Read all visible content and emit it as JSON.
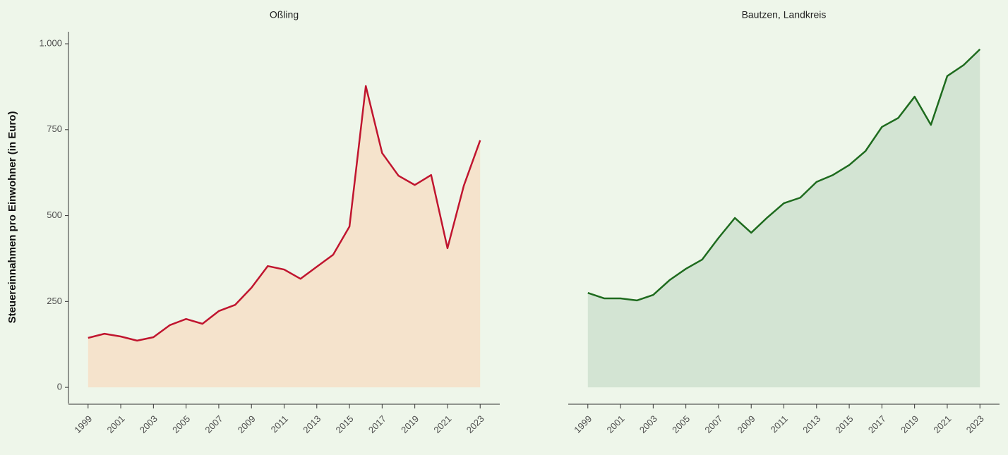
{
  "chart_data": [
    {
      "type": "area",
      "title": "Oßling",
      "ylabel": "Steuereinnahmen pro Einwohner (in Euro)",
      "x": [
        1999,
        2000,
        2001,
        2002,
        2003,
        2004,
        2005,
        2006,
        2007,
        2008,
        2009,
        2010,
        2011,
        2012,
        2013,
        2014,
        2015,
        2016,
        2017,
        2018,
        2019,
        2020,
        2021,
        2022,
        2023
      ],
      "series": [
        {
          "color": "#c0152f",
          "fill": "#f5e3cc",
          "values": [
            144,
            156,
            148,
            136,
            146,
            181,
            199,
            185,
            222,
            240,
            290,
            353,
            343,
            316,
            351,
            386,
            468,
            877,
            682,
            616,
            589,
            618,
            405,
            587,
            719
          ]
        }
      ],
      "xlim": [
        1997.8,
        2024.2
      ],
      "xticks": [
        1999,
        2001,
        2003,
        2005,
        2007,
        2009,
        2011,
        2013,
        2015,
        2017,
        2019,
        2021,
        2023
      ],
      "ylim": [
        -47,
        1035
      ],
      "yticks": [
        0,
        250,
        500,
        750,
        {
          "value": 1000,
          "label": "1.000"
        }
      ]
    },
    {
      "type": "area",
      "title": "Bautzen, Landkreis",
      "x": [
        1999,
        2000,
        2001,
        2002,
        2003,
        2004,
        2005,
        2006,
        2007,
        2008,
        2009,
        2010,
        2011,
        2012,
        2013,
        2014,
        2015,
        2016,
        2017,
        2018,
        2019,
        2020,
        2021,
        2022,
        2023
      ],
      "series": [
        {
          "color": "#1e6b1e",
          "fill": "#d3e4d3",
          "values": [
            275,
            259,
            259,
            253,
            269,
            312,
            345,
            372,
            435,
            493,
            450,
            495,
            536,
            552,
            598,
            618,
            647,
            688,
            758,
            784,
            846,
            764,
            906,
            938,
            984
          ]
        }
      ],
      "xlim": [
        1997.8,
        2024.2
      ],
      "xticks": [
        1999,
        2001,
        2003,
        2005,
        2007,
        2009,
        2011,
        2013,
        2015,
        2017,
        2019,
        2021,
        2023
      ],
      "ylim": [
        -47,
        1035
      ]
    }
  ]
}
